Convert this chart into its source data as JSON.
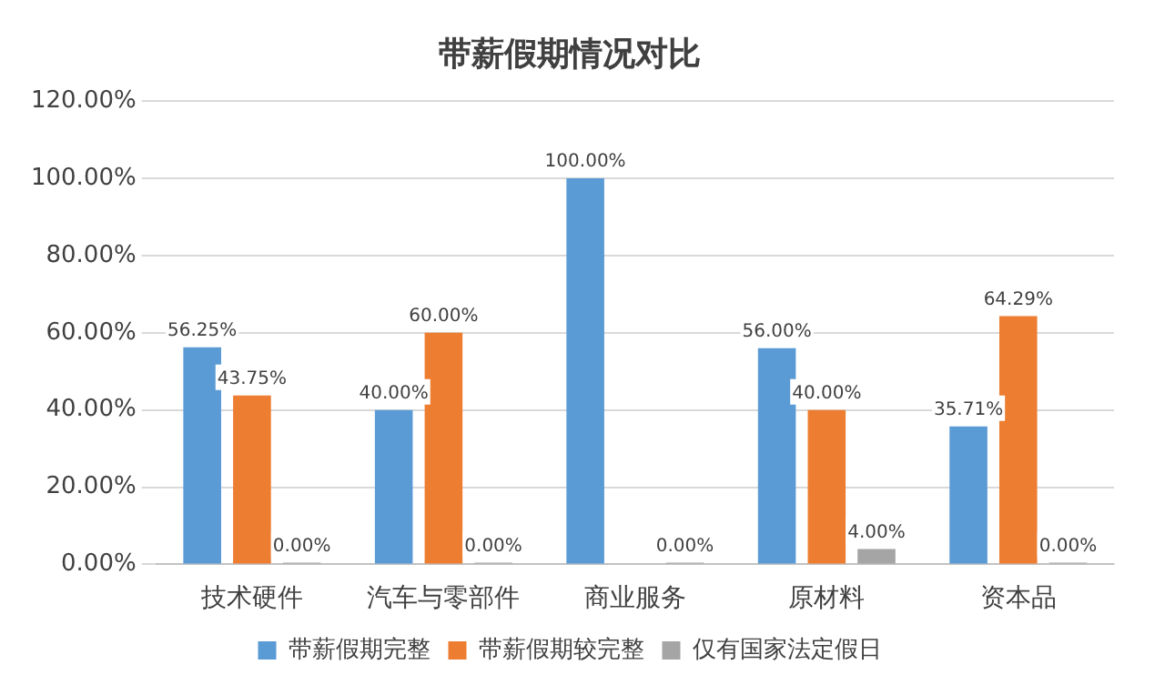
{
  "chart_data": {
    "type": "bar",
    "title": "带薪假期情况对比",
    "categories": [
      "技术硬件",
      "汽车与零部件",
      "商业服务",
      "原材料",
      "资本品"
    ],
    "series": [
      {
        "name": "带薪假期完整",
        "color": "#5b9bd5",
        "values": [
          56.25,
          40.0,
          100.0,
          56.0,
          35.71
        ],
        "value_labels": [
          "56.25%",
          "40.00%",
          "100.00%",
          "56.00%",
          "35.71%"
        ]
      },
      {
        "name": "带薪假期较完整",
        "color": "#ed7d31",
        "values": [
          43.75,
          60.0,
          null,
          40.0,
          64.29
        ],
        "value_labels": [
          "43.75%",
          "60.00%",
          null,
          "40.00%",
          "64.29%"
        ]
      },
      {
        "name": "仅有国家法定假日",
        "color": "#a5a5a5",
        "values": [
          0.0,
          0.0,
          0.0,
          4.0,
          0.0
        ],
        "value_labels": [
          "0.00%",
          "0.00%",
          "0.00%",
          "4.00%",
          "0.00%"
        ]
      }
    ],
    "ylim": [
      0,
      120
    ],
    "yticks": [
      {
        "value": 0,
        "label": "0.00%"
      },
      {
        "value": 20,
        "label": "20.00%"
      },
      {
        "value": 40,
        "label": "40.00%"
      },
      {
        "value": 60,
        "label": "60.00%"
      },
      {
        "value": 80,
        "label": "80.00%"
      },
      {
        "value": 100,
        "label": "100.00%"
      },
      {
        "value": 120,
        "label": "120.00%"
      }
    ],
    "grid": "y",
    "legend": "bottom"
  }
}
